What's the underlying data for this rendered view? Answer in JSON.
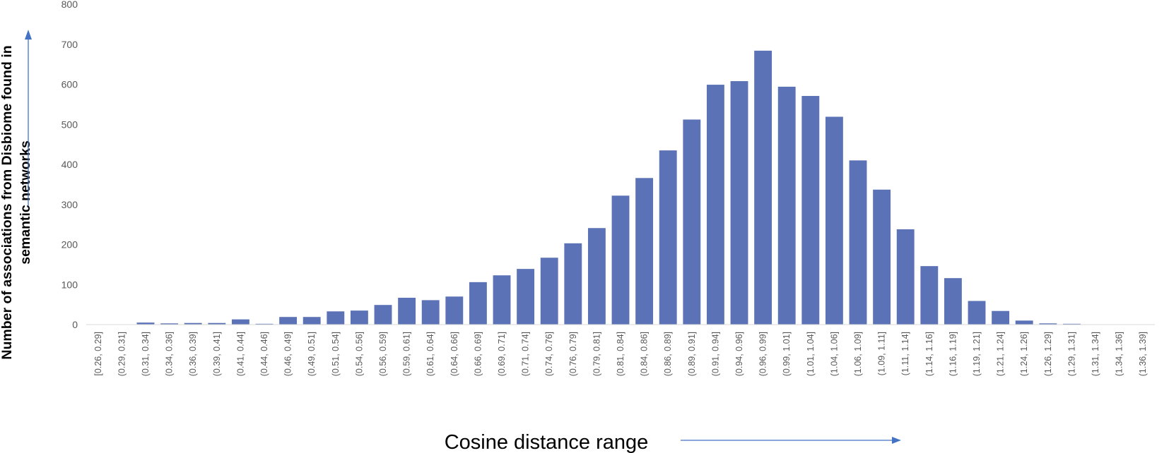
{
  "chart_data": {
    "type": "bar",
    "xlabel": "Cosine distance range",
    "ylabel": [
      "Number of associations from Disbiome found in",
      "semantic networks"
    ],
    "ylim": [
      0,
      800
    ],
    "yticks": [
      0,
      100,
      200,
      300,
      400,
      500,
      600,
      700,
      800
    ],
    "grid": false,
    "legend": "none",
    "bar_color": "#5b73b6",
    "axis_color": "#d9d9d9",
    "arrow_color": "#4472c4",
    "categories": [
      "[0.26, 0.29]",
      "(0.29, 0.31]",
      "(0.31, 0.34]",
      "(0.34, 0.36]",
      "(0.36, 0.39]",
      "(0.39, 0.41]",
      "(0.41, 0.44]",
      "(0.44, 0.46]",
      "(0.46, 0.49]",
      "(0.49, 0.51]",
      "(0.51, 0.54]",
      "(0.54, 0.56]",
      "(0.56, 0.59]",
      "(0.59, 0.61]",
      "(0.61, 0.64]",
      "(0.64, 0.66]",
      "(0.66, 0.69]",
      "(0.69, 0.71]",
      "(0.71, 0.74]",
      "(0.74, 0.76]",
      "(0.76, 0.79]",
      "(0.79, 0.81]",
      "(0.81, 0.84]",
      "(0.84, 0.86]",
      "(0.86, 0.89]",
      "(0.89, 0.91]",
      "(0.91, 0.94]",
      "(0.94, 0.96]",
      "(0.96, 0.99]",
      "(0.99, 1.01]",
      "(1.01, 1.04]",
      "(1.04, 1.06]",
      "(1.06, 1.09]",
      "(1.09, 1.11]",
      "(1.11, 1.14]",
      "(1.14, 1.16]",
      "(1.16, 1.19]",
      "(1.19, 1.21]",
      "(1.21, 1.24]",
      "(1.24, 1.26]",
      "(1.26, 1.29]",
      "(1.29, 1.31]",
      "(1.31, 1.34]",
      "(1.34, 1.36]",
      "(1.36, 1.39]"
    ],
    "values": [
      0,
      0,
      5,
      3,
      4,
      4,
      13,
      2,
      19,
      19,
      33,
      35,
      49,
      67,
      61,
      70,
      106,
      123,
      139,
      167,
      203,
      241,
      322,
      366,
      435,
      512,
      599,
      608,
      684,
      594,
      571,
      519,
      410,
      337,
      238,
      146,
      116,
      59,
      34,
      10,
      3,
      2,
      0,
      0,
      0
    ]
  }
}
